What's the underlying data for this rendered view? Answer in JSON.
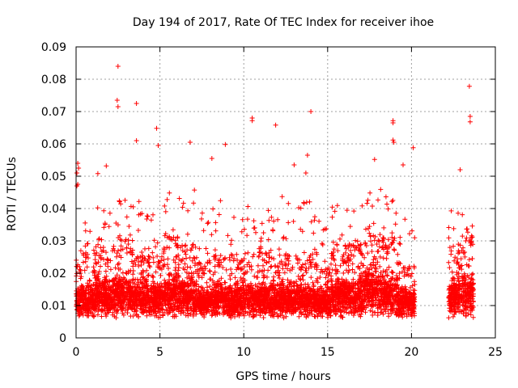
{
  "chart_data": {
    "type": "scatter",
    "title": "Day 194 of 2017, Rate Of TEC Index for receiver ihoe",
    "xlabel": "GPS time / hours",
    "ylabel": "ROTI / TECUs",
    "xlim": [
      0,
      25
    ],
    "ylim": [
      0,
      0.09
    ],
    "xticks": [
      0,
      5,
      10,
      15,
      20,
      25
    ],
    "xtick_labels": [
      "0",
      "5",
      "10",
      "15",
      "20",
      "25"
    ],
    "yticks": [
      0,
      0.01,
      0.02,
      0.03,
      0.04,
      0.05,
      0.06,
      0.07,
      0.08,
      0.09
    ],
    "ytick_labels": [
      "0",
      "0.01",
      "0.02",
      "0.03",
      "0.04",
      "0.05",
      "0.06",
      "0.07",
      "0.08",
      "0.09"
    ],
    "grid": true,
    "legend": "none",
    "marker": "+",
    "series_color": "#ff0000",
    "data_gaps_hours": [
      [
        20.2,
        22.2
      ]
    ],
    "outliers": [
      {
        "x": 2.5,
        "y": 0.084
      },
      {
        "x": 2.45,
        "y": 0.0735
      },
      {
        "x": 2.5,
        "y": 0.0715
      },
      {
        "x": 3.6,
        "y": 0.0725
      },
      {
        "x": 23.45,
        "y": 0.0778
      },
      {
        "x": 10.5,
        "y": 0.068
      },
      {
        "x": 10.5,
        "y": 0.0672
      },
      {
        "x": 11.9,
        "y": 0.0658
      },
      {
        "x": 14.0,
        "y": 0.07
      },
      {
        "x": 18.9,
        "y": 0.0672
      },
      {
        "x": 18.9,
        "y": 0.0665
      },
      {
        "x": 23.5,
        "y": 0.0685
      },
      {
        "x": 23.5,
        "y": 0.0668
      },
      {
        "x": 4.8,
        "y": 0.0648
      },
      {
        "x": 3.6,
        "y": 0.061
      },
      {
        "x": 6.8,
        "y": 0.0605
      },
      {
        "x": 8.9,
        "y": 0.0598
      },
      {
        "x": 18.9,
        "y": 0.0612
      },
      {
        "x": 18.95,
        "y": 0.0605
      },
      {
        "x": 20.1,
        "y": 0.0588
      },
      {
        "x": 4.9,
        "y": 0.0595
      },
      {
        "x": 13.8,
        "y": 0.0565
      },
      {
        "x": 8.1,
        "y": 0.0555
      },
      {
        "x": 17.8,
        "y": 0.0552
      },
      {
        "x": 0.1,
        "y": 0.054
      },
      {
        "x": 0.15,
        "y": 0.0525
      },
      {
        "x": 0.05,
        "y": 0.051
      },
      {
        "x": 1.3,
        "y": 0.0508
      },
      {
        "x": 1.8,
        "y": 0.0532
      },
      {
        "x": 13.0,
        "y": 0.0535
      },
      {
        "x": 13.7,
        "y": 0.051
      },
      {
        "x": 19.5,
        "y": 0.0535
      },
      {
        "x": 22.9,
        "y": 0.052
      },
      {
        "x": 0.05,
        "y": 0.047
      },
      {
        "x": 0.1,
        "y": 0.0475
      }
    ],
    "bands": [
      {
        "x0": 0.0,
        "x1": 0.3,
        "base": 0.011,
        "spread": 0.008,
        "peak": 0.03
      },
      {
        "x0": 0.3,
        "x1": 1.2,
        "base": 0.012,
        "spread": 0.009,
        "peak": 0.036
      },
      {
        "x0": 1.2,
        "x1": 2.2,
        "base": 0.013,
        "spread": 0.01,
        "peak": 0.042
      },
      {
        "x0": 2.2,
        "x1": 3.2,
        "base": 0.014,
        "spread": 0.011,
        "peak": 0.045
      },
      {
        "x0": 3.2,
        "x1": 4.2,
        "base": 0.013,
        "spread": 0.01,
        "peak": 0.045
      },
      {
        "x0": 4.2,
        "x1": 5.2,
        "base": 0.012,
        "spread": 0.009,
        "peak": 0.04
      },
      {
        "x0": 5.2,
        "x1": 6.2,
        "base": 0.014,
        "spread": 0.011,
        "peak": 0.047
      },
      {
        "x0": 6.2,
        "x1": 7.2,
        "base": 0.013,
        "spread": 0.01,
        "peak": 0.046
      },
      {
        "x0": 7.2,
        "x1": 8.2,
        "base": 0.011,
        "spread": 0.008,
        "peak": 0.04
      },
      {
        "x0": 8.2,
        "x1": 9.2,
        "base": 0.012,
        "spread": 0.009,
        "peak": 0.044
      },
      {
        "x0": 9.2,
        "x1": 10.2,
        "base": 0.012,
        "spread": 0.009,
        "peak": 0.038
      },
      {
        "x0": 10.2,
        "x1": 11.2,
        "base": 0.012,
        "spread": 0.009,
        "peak": 0.045
      },
      {
        "x0": 11.2,
        "x1": 12.2,
        "base": 0.012,
        "spread": 0.009,
        "peak": 0.04
      },
      {
        "x0": 12.2,
        "x1": 13.2,
        "base": 0.012,
        "spread": 0.009,
        "peak": 0.046
      },
      {
        "x0": 13.2,
        "x1": 14.2,
        "base": 0.012,
        "spread": 0.009,
        "peak": 0.045
      },
      {
        "x0": 14.2,
        "x1": 15.2,
        "base": 0.011,
        "spread": 0.008,
        "peak": 0.04
      },
      {
        "x0": 15.2,
        "x1": 16.2,
        "base": 0.013,
        "spread": 0.01,
        "peak": 0.043
      },
      {
        "x0": 16.2,
        "x1": 17.2,
        "base": 0.013,
        "spread": 0.01,
        "peak": 0.041
      },
      {
        "x0": 17.2,
        "x1": 18.2,
        "base": 0.016,
        "spread": 0.012,
        "peak": 0.046
      },
      {
        "x0": 18.2,
        "x1": 19.2,
        "base": 0.014,
        "spread": 0.011,
        "peak": 0.047
      },
      {
        "x0": 19.2,
        "x1": 20.2,
        "base": 0.011,
        "spread": 0.008,
        "peak": 0.038
      },
      {
        "x0": 22.2,
        "x1": 23.0,
        "base": 0.013,
        "spread": 0.01,
        "peak": 0.04
      },
      {
        "x0": 23.0,
        "x1": 23.7,
        "base": 0.014,
        "spread": 0.011,
        "peak": 0.041
      }
    ]
  }
}
